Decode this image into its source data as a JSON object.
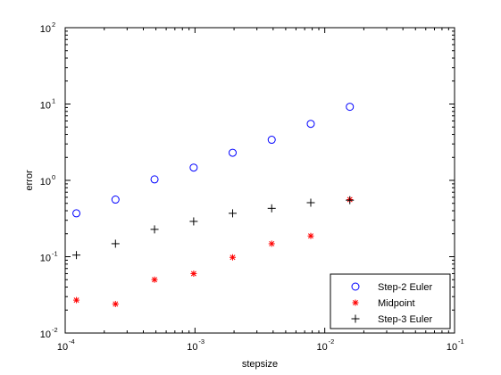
{
  "chart_data": {
    "type": "scatter",
    "xlabel": "stepsize",
    "ylabel": "error",
    "xscale": "log",
    "yscale": "log",
    "xlim": [
      0.0001,
      0.1
    ],
    "ylim": [
      0.01,
      100
    ],
    "x_ticks": [
      {
        "base": "10",
        "exp": "-4"
      },
      {
        "base": "10",
        "exp": "-3"
      },
      {
        "base": "10",
        "exp": "-2"
      },
      {
        "base": "10",
        "exp": "-1"
      }
    ],
    "y_ticks": [
      {
        "base": "10",
        "exp": "-2"
      },
      {
        "base": "10",
        "exp": "-1"
      },
      {
        "base": "10",
        "exp": "0"
      },
      {
        "base": "10",
        "exp": "1"
      },
      {
        "base": "10",
        "exp": "2"
      }
    ],
    "grid": false,
    "legend_position": "bottom-right",
    "x": [
      0.000122,
      0.000244,
      0.000488,
      0.000977,
      0.00195,
      0.0039,
      0.0078,
      0.0156
    ],
    "series": [
      {
        "name": "Step-2 Euler",
        "marker": "circle",
        "color": "#0000ff",
        "values": [
          0.37,
          0.56,
          1.03,
          1.47,
          2.3,
          3.4,
          5.5,
          9.2
        ]
      },
      {
        "name": "Midpoint",
        "marker": "asterisk",
        "color": "#ff0000",
        "values": [
          0.027,
          0.024,
          0.05,
          0.06,
          0.098,
          0.148,
          0.187,
          0.56
        ]
      },
      {
        "name": "Step-3 Euler",
        "marker": "plus",
        "color": "#000000",
        "values": [
          0.105,
          0.148,
          0.228,
          0.29,
          0.37,
          0.43,
          0.51,
          0.55
        ]
      }
    ]
  }
}
